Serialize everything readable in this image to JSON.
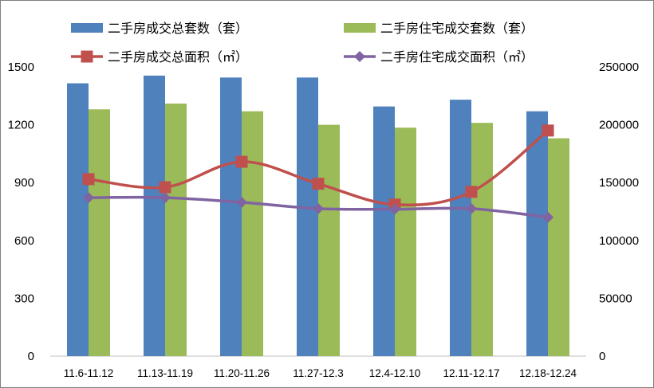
{
  "chart_data": {
    "type": "bar",
    "categories": [
      "11.6-11.12",
      "11.13-11.19",
      "11.20-11.26",
      "11.27-12.3",
      "12.4-12.10",
      "12.11-12.17",
      "12.18-12.24"
    ],
    "left_axis": {
      "ylim": [
        0,
        1500
      ],
      "ticks": [
        0,
        300,
        600,
        900,
        1200,
        1500
      ]
    },
    "right_axis": {
      "ylim": [
        0,
        250000
      ],
      "ticks": [
        0,
        50000,
        100000,
        150000,
        200000,
        250000
      ]
    },
    "series": [
      {
        "name": "二手房成交总套数（套）",
        "type": "bar",
        "axis": "left",
        "color": "#4f81bd",
        "values": [
          1415,
          1455,
          1445,
          1445,
          1295,
          1330,
          1270
        ]
      },
      {
        "name": "二手房住宅成交套数（套）",
        "type": "bar",
        "axis": "left",
        "color": "#9bbb59",
        "values": [
          1280,
          1310,
          1270,
          1200,
          1185,
          1210,
          1130
        ]
      },
      {
        "name": "二手房成交总面积（㎡）",
        "type": "line",
        "axis": "right",
        "color": "#c0504d",
        "marker": "square",
        "values": [
          153000,
          146000,
          168000,
          149000,
          131000,
          142000,
          195000
        ]
      },
      {
        "name": "二手房住宅成交面积（㎡）",
        "type": "line",
        "axis": "right",
        "color": "#8064a2",
        "marker": "diamond",
        "values": [
          137000,
          137000,
          133000,
          127500,
          127000,
          127500,
          120000
        ]
      }
    ],
    "legend_position": "top",
    "grid": false
  }
}
